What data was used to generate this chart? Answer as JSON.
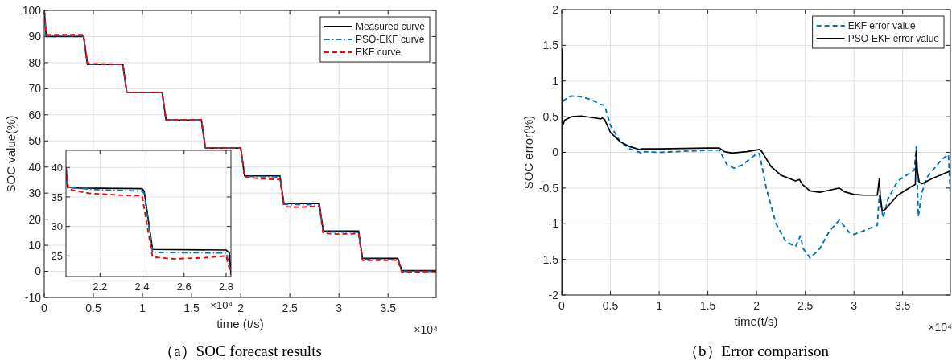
{
  "chart_data": [
    {
      "type": "line",
      "title": "（a）SOC forecast results",
      "xlabel": "time (t/s)",
      "ylabel": "SOC value(%)",
      "xlim": [
        0,
        3.99
      ],
      "ylim": [
        -10,
        100
      ],
      "xticks": [
        0,
        0.5,
        1,
        1.5,
        2,
        2.5,
        3,
        3.5
      ],
      "yticks": [
        -10,
        0,
        10,
        20,
        30,
        40,
        50,
        60,
        70,
        80,
        90,
        100
      ],
      "grid": true,
      "legend": "top right",
      "annotations": [
        "×10⁴"
      ],
      "series": [
        {
          "name": "Measured curve",
          "color": "#000000",
          "line_style": "solid",
          "x": [
            0,
            0.02,
            0.4,
            0.44,
            0.8,
            0.84,
            1.2,
            1.24,
            1.6,
            1.64,
            2.0,
            2.04,
            2.4,
            2.44,
            2.8,
            2.84,
            3.2,
            3.24,
            3.6,
            3.64,
            3.99
          ],
          "values": [
            100,
            90,
            90,
            79.3,
            79.3,
            68.6,
            68.6,
            58,
            58,
            47.3,
            47.3,
            36.6,
            36.6,
            26,
            26,
            15.5,
            15.5,
            5,
            5,
            0.3,
            0.3
          ]
        },
        {
          "name": "PSO-EKF curve",
          "color": "#0072bd",
          "line_style": "dashdot",
          "x": [
            0,
            0.02,
            0.4,
            0.44,
            0.8,
            0.84,
            1.2,
            1.24,
            1.6,
            1.64,
            2.0,
            2.04,
            2.4,
            2.44,
            2.8,
            2.84,
            3.2,
            3.24,
            3.6,
            3.64,
            3.99
          ],
          "values": [
            100,
            90.3,
            90.3,
            79.4,
            79.4,
            68.6,
            68.6,
            58,
            58,
            47.3,
            47.3,
            36.4,
            36.2,
            25.7,
            25.5,
            15.2,
            15,
            4.6,
            4.5,
            0,
            0
          ]
        },
        {
          "name": "EKF curve",
          "color": "#ff0000",
          "line_style": "dashed",
          "x": [
            0,
            0.02,
            0.4,
            0.44,
            0.8,
            0.84,
            1.2,
            1.24,
            1.6,
            1.64,
            2.0,
            2.04,
            2.2,
            2.4,
            2.44,
            2.6,
            2.8,
            2.84,
            3.0,
            3.2,
            3.24,
            3.6,
            3.64,
            3.99
          ],
          "values": [
            100,
            90.7,
            90.7,
            79.6,
            79.3,
            68.6,
            68.6,
            58,
            58,
            47.3,
            47.3,
            36.3,
            35.5,
            35.2,
            24.8,
            24.6,
            25,
            14.6,
            14.3,
            14.5,
            4.2,
            4.3,
            -0.3,
            0
          ]
        }
      ]
    },
    {
      "type": "line",
      "xlim": [
        2.038,
        2.823
      ],
      "ylim": [
        21.5,
        42.9
      ],
      "xticks": [
        2.2,
        2.4,
        2.6,
        2.8
      ],
      "yticks": [
        25,
        30,
        35,
        40
      ],
      "grid": true,
      "annotations": [
        "×10⁴"
      ],
      "series": [
        {
          "color": "#000000",
          "line_style": "solid",
          "x": [
            2.038,
            2.045,
            2.1,
            2.4,
            2.41,
            2.45,
            2.8,
            2.815,
            2.823
          ],
          "values": [
            40,
            36.7,
            36.5,
            36.4,
            36,
            26.1,
            26,
            25.5,
            22
          ]
        },
        {
          "color": "#0072bd",
          "line_style": "dashdot",
          "x": [
            2.038,
            2.045,
            2.2,
            2.4,
            2.41,
            2.45,
            2.8,
            2.823
          ],
          "values": [
            40,
            36.6,
            36.2,
            36,
            35.6,
            25.6,
            25.5,
            22.5
          ]
        },
        {
          "color": "#ff0000",
          "line_style": "dashed",
          "x": [
            2.038,
            2.05,
            2.15,
            2.3,
            2.4,
            2.45,
            2.55,
            2.7,
            2.8,
            2.823
          ],
          "values": [
            40,
            36.3,
            35.6,
            35.3,
            35.2,
            24.8,
            24.5,
            24.7,
            25,
            21.8
          ]
        }
      ]
    },
    {
      "type": "line",
      "title": "（b）Error comparison",
      "xlabel": "time(t/s)",
      "ylabel": "SOC error(%)",
      "xlim": [
        0,
        3.99
      ],
      "ylim": [
        -2,
        2
      ],
      "xticks": [
        0,
        0.5,
        1,
        1.5,
        2,
        2.5,
        3,
        3.5
      ],
      "yticks": [
        -2,
        -1.5,
        -1,
        -0.5,
        0,
        0.5,
        1,
        1.5,
        2
      ],
      "grid": true,
      "legend": "top right",
      "annotations": [
        "×10⁴"
      ],
      "series": [
        {
          "name": "EKF error value",
          "color": "#0072bd",
          "line_style": "dashed",
          "x": [
            0,
            0.02,
            0.1,
            0.2,
            0.3,
            0.4,
            0.44,
            0.5,
            0.6,
            0.7,
            0.8,
            0.82,
            0.85,
            1.0,
            1.5,
            1.62,
            1.65,
            1.7,
            1.77,
            1.85,
            2.0,
            2.03,
            2.1,
            2.2,
            2.3,
            2.4,
            2.45,
            2.48,
            2.55,
            2.65,
            2.75,
            2.85,
            2.95,
            3.0,
            3.1,
            3.24,
            3.26,
            3.3,
            3.35,
            3.45,
            3.62,
            3.64,
            3.66,
            3.7,
            3.75,
            3.9,
            3.97,
            3.99
          ],
          "values": [
            0.6,
            0.73,
            0.79,
            0.78,
            0.74,
            0.67,
            0.66,
            0.38,
            0.15,
            0.05,
            0,
            -0.02,
            0.01,
            0,
            0.03,
            0.03,
            -0.05,
            -0.18,
            -0.22,
            -0.18,
            -0.02,
            -0.02,
            -0.5,
            -1.0,
            -1.25,
            -1.32,
            -1.17,
            -1.35,
            -1.48,
            -1.35,
            -1.1,
            -0.95,
            -1.12,
            -1.15,
            -1.1,
            -1.02,
            -0.6,
            -0.92,
            -0.65,
            -0.4,
            -0.25,
            0.08,
            -0.9,
            -0.55,
            -0.35,
            -0.1,
            -0.03,
            -0.6
          ]
        },
        {
          "name": "PSO-EKF error value",
          "color": "#000000",
          "line_style": "solid",
          "x": [
            0,
            0.001,
            0.003,
            0.03,
            0.1,
            0.2,
            0.3,
            0.4,
            0.42,
            0.44,
            0.5,
            0.6,
            0.7,
            0.8,
            0.82,
            1.0,
            1.5,
            1.62,
            1.67,
            1.75,
            1.9,
            2.03,
            2.05,
            2.15,
            2.25,
            2.4,
            2.44,
            2.47,
            2.55,
            2.65,
            2.75,
            2.85,
            2.9,
            3.0,
            3.1,
            3.24,
            3.26,
            3.27,
            3.29,
            3.32,
            3.45,
            3.6,
            3.63,
            3.64,
            3.65,
            3.67,
            3.7,
            3.8,
            3.99
          ],
          "values": [
            -2,
            1.45,
            0.35,
            0.45,
            0.5,
            0.51,
            0.49,
            0.47,
            0.48,
            0.46,
            0.28,
            0.15,
            0.08,
            0.04,
            0.05,
            0.05,
            0.06,
            0.06,
            0.01,
            -0.01,
            0.01,
            0.04,
            0.02,
            -0.2,
            -0.32,
            -0.4,
            -0.38,
            -0.45,
            -0.54,
            -0.56,
            -0.53,
            -0.5,
            -0.55,
            -0.59,
            -0.6,
            -0.6,
            -0.37,
            -0.6,
            -0.82,
            -0.8,
            -0.6,
            -0.47,
            -0.45,
            0.02,
            -0.25,
            -0.42,
            -0.44,
            -0.37,
            -0.26
          ]
        }
      ]
    }
  ]
}
